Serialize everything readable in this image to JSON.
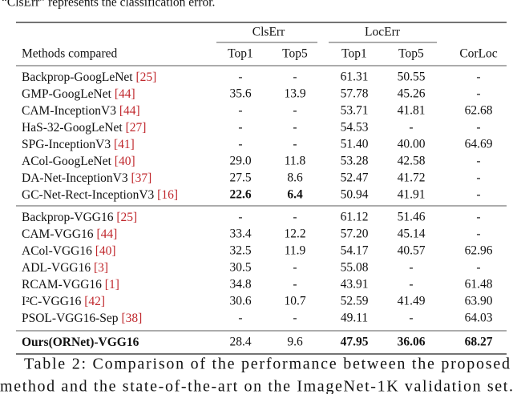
{
  "intro": "“ClsErr” represents the classification error.",
  "table": {
    "group_headers": [
      "ClsErr",
      "LocErr"
    ],
    "columns": [
      "Methods compared",
      "Top1",
      "Top5",
      "Top1",
      "Top5",
      "CorLoc"
    ],
    "groups": [
      [
        {
          "method": "Backprop-GoogLeNet",
          "cite": "[25]",
          "cells": [
            "-",
            "-",
            "61.31",
            "50.55",
            "-"
          ]
        },
        {
          "method": "GMP-GoogLeNet",
          "cite": "[44]",
          "cells": [
            "35.6",
            "13.9",
            "57.78",
            "45.26",
            "-"
          ]
        },
        {
          "method": "CAM-InceptionV3",
          "cite": "[44]",
          "cells": [
            "-",
            "-",
            "53.71",
            "41.81",
            "62.68"
          ]
        },
        {
          "method": "HaS-32-GoogLeNet",
          "cite": "[27]",
          "cells": [
            "-",
            "-",
            "54.53",
            "-",
            "-"
          ]
        },
        {
          "method": "SPG-InceptionV3",
          "cite": "[41]",
          "cells": [
            "-",
            "-",
            "51.40",
            "40.00",
            "64.69"
          ]
        },
        {
          "method": "ACol-GoogLeNet",
          "cite": "[40]",
          "cells": [
            "29.0",
            "11.8",
            "53.28",
            "42.58",
            "-"
          ]
        },
        {
          "method": "DA-Net-InceptionV3",
          "cite": "[37]",
          "cells": [
            "27.5",
            "8.6",
            "52.47",
            "41.72",
            "-"
          ]
        },
        {
          "method": "GC-Net-Rect-InceptionV3",
          "cite": "[16]",
          "cells": [
            "22.6",
            "6.4",
            "50.94",
            "41.91",
            "-"
          ],
          "bold": [
            0,
            1
          ]
        }
      ],
      [
        {
          "method": "Backprop-VGG16",
          "cite": "[25]",
          "cells": [
            "-",
            "-",
            "61.12",
            "51.46",
            "-"
          ]
        },
        {
          "method": "CAM-VGG16",
          "cite": "[44]",
          "cells": [
            "33.4",
            "12.2",
            "57.20",
            "45.14",
            "-"
          ]
        },
        {
          "method": "ACol-VGG16",
          "cite": "[40]",
          "cells": [
            "32.5",
            "11.9",
            "54.17",
            "40.57",
            "62.96"
          ]
        },
        {
          "method": "ADL-VGG16",
          "cite": "[3]",
          "cells": [
            "30.5",
            "-",
            "55.08",
            "-",
            "-"
          ]
        },
        {
          "method": "RCAM-VGG16",
          "cite": "[1]",
          "cells": [
            "34.8",
            "-",
            "43.91",
            "-",
            "61.48"
          ]
        },
        {
          "method": "I²C-VGG16",
          "cite": "[42]",
          "cells": [
            "30.6",
            "10.7",
            "52.59",
            "41.49",
            "63.90"
          ]
        },
        {
          "method": "PSOL-VGG16-Sep",
          "cite": "[38]",
          "cells": [
            "-",
            "-",
            "49.11",
            "-",
            "64.03"
          ]
        }
      ],
      [
        {
          "method": "Ours(ORNet)-VGG16",
          "cells": [
            "28.4",
            "9.6",
            "47.95",
            "36.06",
            "68.27"
          ],
          "bold": [
            2,
            3,
            4
          ],
          "method_bold": true
        }
      ]
    ]
  },
  "caption": [
    "Table 2: Comparison of the performance between the proposed",
    "method and the state-of-the-art on the ImageNet-1K validation set."
  ]
}
